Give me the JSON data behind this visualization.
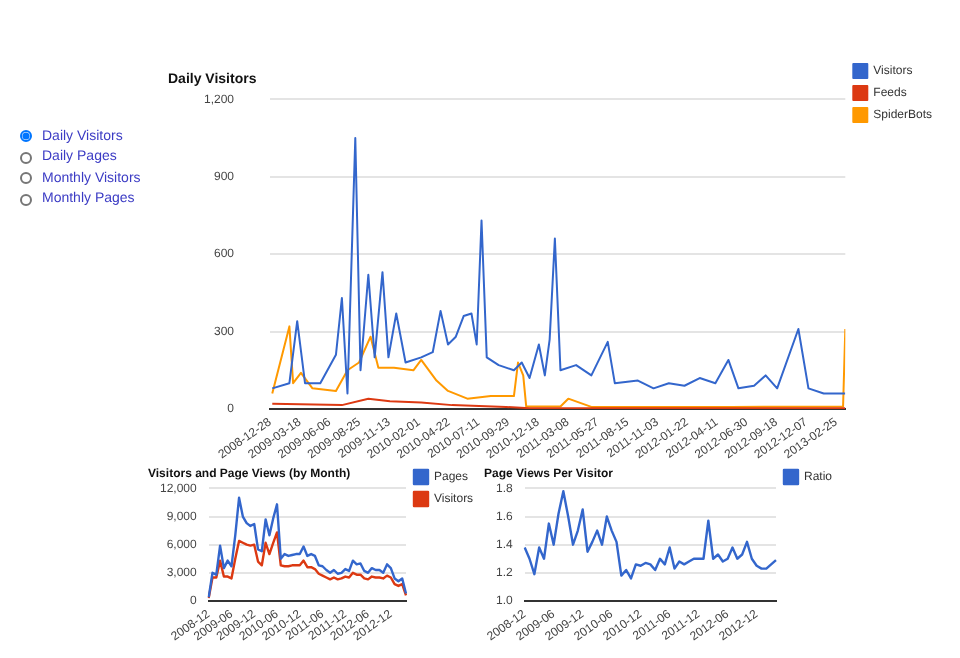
{
  "chart_data": [
    {
      "type": "other",
      "annotations": [
        "Daily Visitors",
        "Daily Pages",
        "Monthly Visitors",
        "Monthly Pages"
      ]
    },
    {
      "type": "line",
      "title": "Daily Visitors",
      "ylim": [
        0,
        1200
      ],
      "yticks": [
        0,
        {
          "value": 300,
          "label": "300"
        },
        {
          "value": 600,
          "label": "600"
        },
        {
          "value": 900,
          "label": "900"
        },
        {
          "value": 1200,
          "label": "1,200"
        }
      ],
      "xlim": [
        "2008-12-28",
        "2013-03-22"
      ],
      "xticks": [
        "2008-12-28",
        "2009-03-18",
        "2009-06-06",
        "2009-08-25",
        "2009-11-13",
        "2010-02-01",
        "2010-04-22",
        "2010-07-11",
        "2010-09-29",
        "2010-12-18",
        "2011-03-08",
        "2011-05-27",
        "2011-08-15",
        "2011-11-03",
        "2012-01-22",
        "2012-04-11",
        "2012-06-30",
        "2012-09-18",
        "2012-12-07",
        "2013-02-25"
      ],
      "grid": "y",
      "legend": "right",
      "marker": "none",
      "series": [
        {
          "name": "Visitors",
          "color": "#3366cc",
          "x": [
            "2009-01-03",
            "2009-02-18",
            "2009-03-11",
            "2009-04-01",
            "2009-05-12",
            "2009-06-23",
            "2009-07-09",
            "2009-07-24",
            "2009-08-14",
            "2009-08-28",
            "2009-09-18",
            "2009-10-05",
            "2009-10-26",
            "2009-11-11",
            "2009-12-02",
            "2009-12-27",
            "2010-02-07",
            "2010-03-10",
            "2010-03-31",
            "2010-04-20",
            "2010-05-11",
            "2010-06-01",
            "2010-06-22",
            "2010-07-06",
            "2010-07-19",
            "2010-08-02",
            "2010-09-03",
            "2010-10-14",
            "2010-11-04",
            "2010-11-25",
            "2010-12-20",
            "2011-01-05",
            "2011-01-18",
            "2011-02-01",
            "2011-02-16",
            "2011-03-30",
            "2011-05-10",
            "2011-06-23",
            "2011-07-12",
            "2011-09-12",
            "2011-10-24",
            "2011-12-04",
            "2012-01-15",
            "2012-02-25",
            "2012-04-07",
            "2012-05-12",
            "2012-06-08",
            "2012-07-20",
            "2012-08-20",
            "2012-09-20",
            "2012-11-16",
            "2012-12-13",
            "2013-01-23",
            "2013-03-22"
          ],
          "values": [
            80,
            100,
            340,
            100,
            100,
            210,
            430,
            60,
            1050,
            150,
            520,
            200,
            530,
            200,
            370,
            180,
            200,
            220,
            380,
            250,
            280,
            360,
            370,
            250,
            730,
            200,
            170,
            150,
            180,
            120,
            250,
            130,
            270,
            660,
            150,
            170,
            130,
            260,
            100,
            110,
            80,
            100,
            90,
            120,
            100,
            190,
            80,
            90,
            130,
            80,
            310,
            80,
            60,
            60
          ]
        },
        {
          "name": "Feeds",
          "color": "#dc3912",
          "x": [
            "2009-01-03",
            "2009-07-09",
            "2009-09-18",
            "2009-11-15",
            "2010-02-07",
            "2010-05-01",
            "2010-09-23",
            "2010-11-25",
            "2013-03-22"
          ],
          "values": [
            20,
            15,
            40,
            30,
            25,
            15,
            8,
            3,
            3
          ]
        },
        {
          "name": "SpiderBots",
          "color": "#ff9900",
          "x": [
            "2009-01-03",
            "2009-02-18",
            "2009-02-28",
            "2009-03-21",
            "2009-04-21",
            "2009-06-23",
            "2009-07-24",
            "2009-08-24",
            "2009-09-24",
            "2009-10-15",
            "2009-11-26",
            "2010-01-17",
            "2010-02-07",
            "2010-03-20",
            "2010-04-20",
            "2010-06-11",
            "2010-08-13",
            "2010-10-14",
            "2010-10-25",
            "2010-11-08",
            "2010-11-16",
            "2011-02-16",
            "2011-03-09",
            "2011-05-10",
            "2012-05-19",
            "2013-03-16",
            "2013-03-22"
          ],
          "values": [
            60,
            320,
            100,
            140,
            80,
            70,
            150,
            180,
            280,
            160,
            160,
            150,
            190,
            110,
            70,
            40,
            50,
            50,
            180,
            130,
            10,
            10,
            40,
            8,
            8,
            10,
            310
          ]
        }
      ]
    },
    {
      "type": "line",
      "title": "Visitors and Page Views (by Month)",
      "ylim": [
        0,
        12000
      ],
      "yticks": [
        0,
        {
          "value": 3000,
          "label": "3,000"
        },
        {
          "value": 6000,
          "label": "6,000"
        },
        {
          "value": 9000,
          "label": "9,000"
        },
        {
          "value": 12000,
          "label": "12,000"
        }
      ],
      "categories": [
        "2008-12",
        null,
        null,
        null,
        null,
        null,
        "2009-06",
        null,
        null,
        null,
        null,
        null,
        "2009-12",
        null,
        null,
        null,
        null,
        null,
        "2010-06",
        null,
        null,
        null,
        null,
        null,
        "2010-12",
        null,
        null,
        null,
        null,
        null,
        "2011-06",
        null,
        null,
        null,
        null,
        null,
        "2011-12",
        null,
        null,
        null,
        null,
        null,
        "2012-06",
        null,
        null,
        null,
        null,
        null,
        "2012-12",
        null,
        null,
        null,
        null
      ],
      "grid": "y",
      "legend": "right",
      "marker": "none",
      "series": [
        {
          "name": "Pages",
          "color": "#3366cc",
          "values": [
            400,
            3000,
            2800,
            5900,
            3500,
            4300,
            3700,
            7000,
            11000,
            9000,
            8300,
            8000,
            8200,
            5500,
            5300,
            8700,
            7000,
            8800,
            10300,
            4500,
            5000,
            4800,
            4900,
            5000,
            5000,
            5800,
            4800,
            5000,
            4800,
            3800,
            3700,
            3300,
            3000,
            3300,
            2900,
            3000,
            3400,
            3200,
            4300,
            3900,
            4000,
            3200,
            3000,
            3500,
            3300,
            3300,
            3000,
            3900,
            3500,
            2400,
            2100,
            2400,
            800
          ]
        },
        {
          "name": "Visitors",
          "color": "#dc3912",
          "values": [
            300,
            2500,
            2500,
            4300,
            2600,
            2600,
            2400,
            4500,
            6400,
            6200,
            6000,
            5900,
            6000,
            4200,
            3800,
            6200,
            5000,
            6200,
            7300,
            3800,
            3700,
            3700,
            3800,
            3800,
            3800,
            4300,
            3600,
            3600,
            3400,
            2900,
            2700,
            2500,
            2300,
            2500,
            2300,
            2400,
            2600,
            2500,
            3000,
            2800,
            2800,
            2400,
            2300,
            2600,
            2500,
            2500,
            2400,
            2700,
            2500,
            1800,
            1600,
            1800,
            600
          ]
        }
      ]
    },
    {
      "type": "line",
      "title": "Page Views Per Visitor",
      "ylim": [
        1.0,
        1.8
      ],
      "yticks": [
        {
          "value": 1.0,
          "label": "1.0"
        },
        {
          "value": 1.2,
          "label": "1.2"
        },
        {
          "value": 1.4,
          "label": "1.4"
        },
        {
          "value": 1.6,
          "label": "1.6"
        },
        {
          "value": 1.8,
          "label": "1.8"
        }
      ],
      "categories": [
        "2008-12",
        null,
        null,
        null,
        null,
        null,
        "2009-06",
        null,
        null,
        null,
        null,
        null,
        "2009-12",
        null,
        null,
        null,
        null,
        null,
        "2010-06",
        null,
        null,
        null,
        null,
        null,
        "2010-12",
        null,
        null,
        null,
        null,
        null,
        "2011-06",
        null,
        null,
        null,
        null,
        null,
        "2011-12",
        null,
        null,
        null,
        null,
        null,
        "2012-06",
        null,
        null,
        null,
        null,
        null,
        "2012-12",
        null,
        null,
        null,
        null
      ],
      "grid": "y",
      "legend": "right",
      "marker": "none",
      "series": [
        {
          "name": "Ratio",
          "color": "#3366cc",
          "values": [
            1.38,
            1.3,
            1.19,
            1.38,
            1.3,
            1.55,
            1.4,
            1.62,
            1.78,
            1.6,
            1.4,
            1.5,
            1.65,
            1.35,
            1.42,
            1.5,
            1.4,
            1.6,
            1.5,
            1.42,
            1.18,
            1.22,
            1.16,
            1.26,
            1.25,
            1.27,
            1.26,
            1.22,
            1.3,
            1.26,
            1.38,
            1.23,
            1.28,
            1.26,
            1.28,
            1.3,
            1.3,
            1.3,
            1.57,
            1.3,
            1.33,
            1.28,
            1.3,
            1.38,
            1.3,
            1.33,
            1.42,
            1.3,
            1.25,
            1.23,
            1.23,
            1.26,
            1.29
          ]
        }
      ]
    }
  ]
}
